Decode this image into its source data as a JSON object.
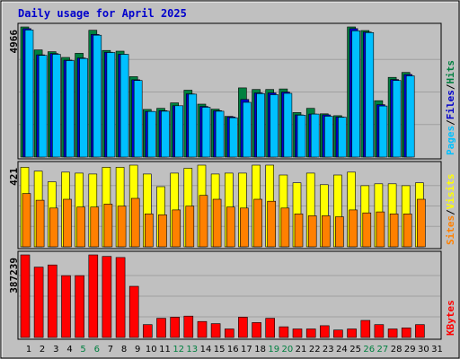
{
  "chart_data": {
    "type": "bar",
    "title": "Daily usage for April 2025",
    "days": [
      "1",
      "2",
      "3",
      "4",
      "5",
      "6",
      "7",
      "8",
      "9",
      "10",
      "11",
      "12",
      "13",
      "14",
      "15",
      "16",
      "17",
      "18",
      "19",
      "20",
      "21",
      "22",
      "23",
      "24",
      "25",
      "26",
      "27",
      "28",
      "29",
      "30",
      "31"
    ],
    "weekend_days": [
      "5",
      "6",
      "12",
      "13",
      "19",
      "20",
      "26",
      "27"
    ],
    "colors": {
      "title": "#0000cc",
      "weekend": "#008040",
      "weekday": "#000000",
      "hits": "#008040",
      "files": "#0000cc",
      "pages": "#00c0ff",
      "visits": "#ffff00",
      "sites": "#ff8000",
      "kbytes": "#ff0000"
    },
    "panels": [
      {
        "id": "hits-files-pages",
        "ymax_label": "4966",
        "ymax": 4966,
        "legend": [
          {
            "text": "Pages",
            "color": "#00c0ff"
          },
          {
            "text": "/",
            "color": "#000000"
          },
          {
            "text": "Files",
            "color": "#0000cc"
          },
          {
            "text": "/",
            "color": "#000000"
          },
          {
            "text": "Hits",
            "color": "#008040"
          }
        ],
        "series": [
          {
            "name": "Hits",
            "color": "#008040",
            "values": [
              4966,
              4090,
              4020,
              3800,
              3960,
              4840,
              4070,
              4040,
              3070,
              1820,
              1860,
              2070,
              2550,
              2020,
              1830,
              1550,
              2640,
              2580,
              2580,
              2600,
              1700,
              1860,
              1650,
              1580,
              4966,
              4830,
              2150,
              3040,
              3230,
              0,
              0
            ]
          },
          {
            "name": "Files",
            "color": "#0000cc",
            "values": [
              4900,
              3900,
              3950,
              3700,
              3780,
              4680,
              4000,
              3920,
              2950,
              1740,
              1770,
              1960,
              2410,
              1930,
              1770,
              1530,
              2200,
              2450,
              2450,
              2480,
              1610,
              1640,
              1610,
              1530,
              4900,
              4770,
              2000,
              2960,
              3150,
              0,
              0
            ]
          },
          {
            "name": "Pages",
            "color": "#00c0ff",
            "values": [
              4850,
              3880,
              3920,
              3680,
              3760,
              4650,
              3990,
              3920,
              2920,
              1740,
              1750,
              1960,
              2400,
              1900,
              1750,
              1500,
              2090,
              2420,
              2380,
              2430,
              1600,
              1640,
              1560,
              1520,
              4820,
              4750,
              1950,
              2920,
              3100,
              0,
              0
            ]
          }
        ]
      },
      {
        "id": "visits-sites",
        "ymax_label": "421",
        "ymax": 421,
        "legend": [
          {
            "text": "Sites",
            "color": "#ff8000"
          },
          {
            "text": "/",
            "color": "#000000"
          },
          {
            "text": "Visits",
            "color": "#ffff00"
          }
        ],
        "series": [
          {
            "name": "Visits",
            "color": "#ffff00",
            "values": [
              410,
              390,
              335,
              385,
              380,
              375,
              410,
              410,
              421,
              375,
              310,
              380,
              405,
              421,
              375,
              380,
              380,
              421,
              421,
              370,
              330,
              380,
              320,
              370,
              385,
              315,
              325,
              325,
              315,
              330,
              0
            ]
          },
          {
            "name": "Sites",
            "color": "#ff8000",
            "values": [
              275,
              240,
              200,
              245,
              205,
              205,
              220,
              210,
              250,
              170,
              165,
              190,
              210,
              265,
              245,
              205,
              200,
              245,
              235,
              200,
              170,
              160,
              160,
              155,
              190,
              175,
              180,
              170,
              170,
              245,
              0
            ]
          }
        ]
      },
      {
        "id": "kbytes",
        "ymax_label": "387239",
        "ymax": 387239,
        "legend": [
          {
            "text": "KBytes",
            "color": "#ff0000"
          }
        ],
        "series": [
          {
            "name": "KBytes",
            "color": "#ff0000",
            "values": [
              387239,
              330000,
              340000,
              290000,
              290000,
              387239,
              380000,
              375000,
              240000,
              60000,
              90000,
              95000,
              100000,
              75000,
              65000,
              40000,
              95000,
              70000,
              90000,
              50000,
              40000,
              40000,
              55000,
              35000,
              40000,
              80000,
              60000,
              40000,
              45000,
              60000,
              0
            ]
          }
        ]
      }
    ]
  }
}
